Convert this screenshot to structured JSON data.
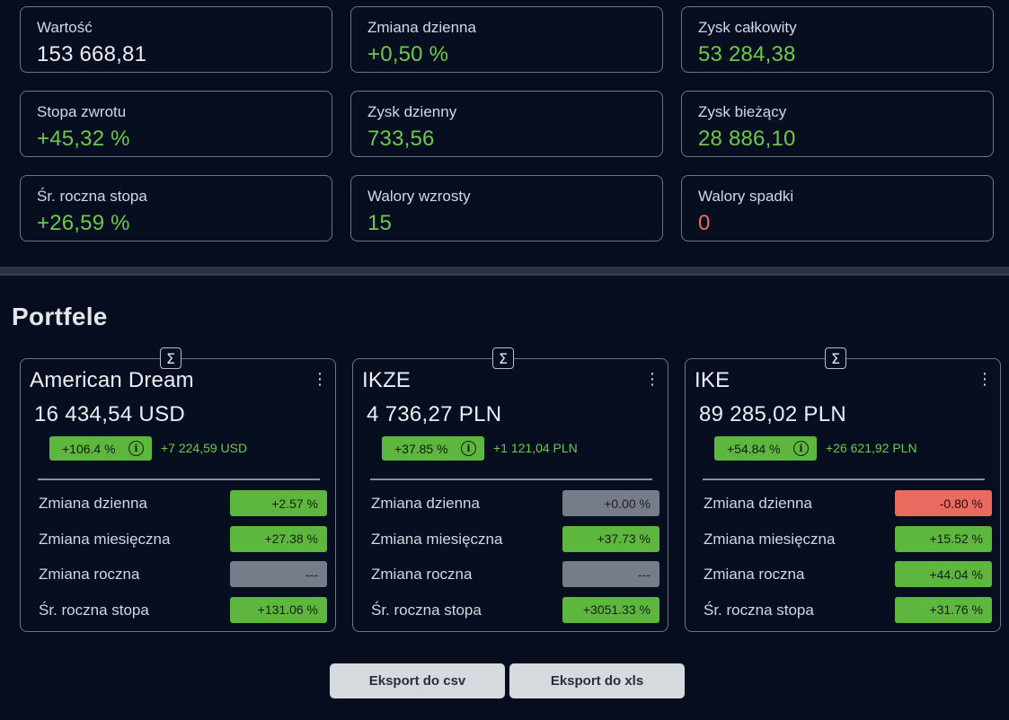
{
  "stats": [
    {
      "label": "Wartość",
      "value": "153 668,81",
      "tone": "white"
    },
    {
      "label": "Zmiana dzienna",
      "value": "+0,50 %",
      "tone": "green"
    },
    {
      "label": "Zysk całkowity",
      "value": "53 284,38",
      "tone": "green"
    },
    {
      "label": "Stopa zwrotu",
      "value": "+45,32 %",
      "tone": "green"
    },
    {
      "label": "Zysk dzienny",
      "value": "733,56",
      "tone": "green"
    },
    {
      "label": "Zysk bieżący",
      "value": "28 886,10",
      "tone": "green"
    },
    {
      "label": "Śr. roczna stopa",
      "value": "+26,59 %",
      "tone": "green"
    },
    {
      "label": "Walory wzrosty",
      "value": "15",
      "tone": "green"
    },
    {
      "label": "Walory spadki",
      "value": "0",
      "tone": "red"
    }
  ],
  "section_title": "Portfele",
  "sum_symbol": "Σ",
  "menu_symbol": "⋮",
  "info_symbol": "i",
  "portfolios": [
    {
      "name": "American Dream",
      "value": "16 434,54 USD",
      "return_badge": "+106.4 %",
      "gain": "+7 224,59 USD",
      "rows": [
        {
          "label": "Zmiana dzienna",
          "value": "+2.57 %",
          "tone": "green"
        },
        {
          "label": "Zmiana miesięczna",
          "value": "+27.38 %",
          "tone": "green"
        },
        {
          "label": "Zmiana roczna",
          "value": "---",
          "tone": "gray"
        },
        {
          "label": "Śr. roczna stopa",
          "value": "+131.06 %",
          "tone": "green"
        }
      ]
    },
    {
      "name": "IKZE",
      "value": "4 736,27 PLN",
      "return_badge": "+37.85 %",
      "gain": "+1 121,04 PLN",
      "rows": [
        {
          "label": "Zmiana dzienna",
          "value": "+0.00 %",
          "tone": "gray"
        },
        {
          "label": "Zmiana miesięczna",
          "value": "+37.73 %",
          "tone": "green"
        },
        {
          "label": "Zmiana roczna",
          "value": "---",
          "tone": "gray"
        },
        {
          "label": "Śr. roczna stopa",
          "value": "+3051.33 %",
          "tone": "green"
        }
      ]
    },
    {
      "name": "IKE",
      "value": "89 285,02 PLN",
      "return_badge": "+54.84 %",
      "gain": "+26 621,92 PLN",
      "rows": [
        {
          "label": "Zmiana dzienna",
          "value": "-0.80 %",
          "tone": "red"
        },
        {
          "label": "Zmiana miesięczna",
          "value": "+15.52 %",
          "tone": "green"
        },
        {
          "label": "Zmiana roczna",
          "value": "+44.04 %",
          "tone": "green"
        },
        {
          "label": "Śr. roczna stopa",
          "value": "+31.76 %",
          "tone": "green"
        }
      ]
    }
  ],
  "export": {
    "csv_label": "Eksport do csv",
    "xls_label": "Eksport do xls"
  },
  "colors": {
    "background": "#060d1e",
    "positive": "#5db73f",
    "negative": "#e96a5f",
    "neutral": "#767d89"
  }
}
